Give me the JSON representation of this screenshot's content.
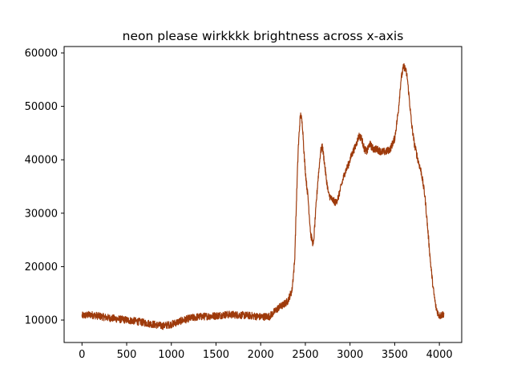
{
  "chart_data": {
    "type": "line",
    "title": "neon please wirkkkk brightness across x-axis",
    "xlabel": "",
    "ylabel": "",
    "xlim": [
      -200,
      4250
    ],
    "ylim": [
      5800,
      61200
    ],
    "x_ticks": [
      0,
      500,
      1000,
      1500,
      2000,
      2500,
      3000,
      3500,
      4000
    ],
    "y_ticks": [
      10000,
      20000,
      30000,
      40000,
      50000,
      60000
    ],
    "x_tick_labels": [
      "0",
      "500",
      "1000",
      "1500",
      "2000",
      "2500",
      "3000",
      "3500",
      "4000"
    ],
    "y_tick_labels": [
      "10000",
      "20000",
      "30000",
      "40000",
      "50000",
      "60000"
    ],
    "grid": false,
    "series": [
      {
        "color": "#9e3a0b",
        "noise_amplitude": 700,
        "x": [
          0,
          100,
          200,
          300,
          400,
          500,
          600,
          700,
          800,
          900,
          1000,
          1100,
          1200,
          1300,
          1400,
          1500,
          1600,
          1700,
          1800,
          1900,
          2000,
          2100,
          2150,
          2200,
          2250,
          2300,
          2350,
          2380,
          2400,
          2420,
          2440,
          2450,
          2470,
          2490,
          2510,
          2530,
          2560,
          2590,
          2610,
          2640,
          2670,
          2690,
          2710,
          2730,
          2760,
          2800,
          2840,
          2870,
          2900,
          2940,
          2980,
          3020,
          3060,
          3100,
          3130,
          3160,
          3190,
          3220,
          3260,
          3300,
          3350,
          3400,
          3450,
          3500,
          3540,
          3570,
          3600,
          3620,
          3640,
          3660,
          3690,
          3720,
          3760,
          3800,
          3840,
          3870,
          3900,
          3930,
          3960,
          3990,
          4010,
          4030,
          4050
        ],
        "y": [
          10800,
          11000,
          10700,
          10400,
          10200,
          10000,
          9800,
          9500,
          9200,
          8900,
          9200,
          9800,
          10300,
          10600,
          10700,
          10800,
          11000,
          11000,
          10900,
          10800,
          10600,
          10700,
          11500,
          12300,
          12800,
          13500,
          15500,
          21000,
          32000,
          42000,
          47500,
          48500,
          46000,
          40000,
          36000,
          33000,
          26000,
          24000,
          29000,
          36000,
          41500,
          42500,
          40000,
          37000,
          33500,
          32500,
          32000,
          33000,
          35000,
          37500,
          39000,
          41000,
          42500,
          44500,
          44000,
          42000,
          41500,
          43000,
          42000,
          42000,
          41500,
          41500,
          42000,
          44000,
          49000,
          55000,
          57500,
          57000,
          55500,
          52000,
          46500,
          43000,
          40000,
          37500,
          33000,
          27000,
          21000,
          16000,
          12500,
          11000,
          10800,
          11000,
          11200
        ]
      }
    ]
  }
}
